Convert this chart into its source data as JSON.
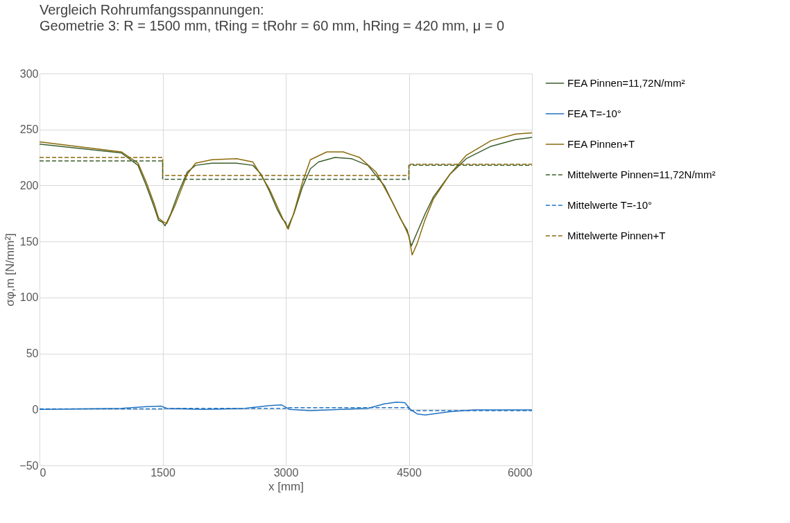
{
  "chart_data": {
    "type": "line",
    "title": "Vergleich Rohrumfangsspannungen:",
    "subtitle": "Geometrie 3: R = 1500 mm, tRing = tRohr = 60 mm, hRing = 420 mm, μ = 0",
    "xlabel": "x [mm]",
    "ylabel": "σφ,m [N/mm²]",
    "xlim": [
      0,
      6000
    ],
    "ylim": [
      -50,
      300
    ],
    "xticks": [
      0,
      1500,
      3000,
      4500,
      6000
    ],
    "yticks": [
      -50,
      0,
      50,
      100,
      150,
      200,
      250,
      300
    ],
    "grid": true,
    "legend": "right",
    "marker": "none",
    "series": [
      {
        "name": "FEA Pinnen=11,72N/mm²",
        "color": "#3b5e2b",
        "line_style": "solid",
        "x": [
          0,
          1000,
          1200,
          1300,
          1400,
          1450,
          1500,
          1530,
          1600,
          1700,
          1800,
          1900,
          2100,
          2400,
          2600,
          2700,
          2800,
          2900,
          2960,
          3000,
          3020,
          3100,
          3200,
          3300,
          3400,
          3600,
          3800,
          4000,
          4200,
          4300,
          4400,
          4480,
          4530,
          4600,
          4700,
          4800,
          5000,
          5200,
          5500,
          5800,
          6000
        ],
        "values": [
          237,
          229,
          218,
          200,
          180,
          169,
          167,
          164,
          175,
          195,
          212,
          218,
          220,
          220,
          218,
          210,
          195,
          178,
          170,
          167,
          162,
          175,
          198,
          215,
          221,
          225,
          224,
          218,
          200,
          185,
          170,
          160,
          146,
          158,
          175,
          190,
          210,
          224,
          235,
          241,
          243
        ]
      },
      {
        "name": "FEA T=-10°",
        "color": "#1f73c4",
        "line_style": "solid",
        "x": [
          0,
          1000,
          1300,
          1480,
          1550,
          2000,
          2500,
          2800,
          2950,
          3050,
          3300,
          4000,
          4200,
          4350,
          4450,
          4520,
          4600,
          4700,
          5000,
          5300,
          6000
        ],
        "values": [
          0,
          1,
          2.5,
          3,
          1,
          0,
          1,
          3.5,
          4,
          0,
          -1,
          1,
          5,
          6.5,
          6,
          0,
          -4,
          -5,
          -2,
          -0.5,
          -0.5
        ]
      },
      {
        "name": "FEA Pinnen+T",
        "color": "#8b6a0a",
        "line_style": "solid",
        "x": [
          0,
          1000,
          1200,
          1300,
          1400,
          1450,
          1500,
          1550,
          1650,
          1800,
          1900,
          2100,
          2400,
          2600,
          2800,
          2960,
          3030,
          3100,
          3200,
          3300,
          3500,
          3700,
          3900,
          4100,
          4300,
          4450,
          4500,
          4540,
          4600,
          4700,
          4800,
          5000,
          5200,
          5500,
          5800,
          6000
        ],
        "values": [
          239,
          230,
          220,
          203,
          183,
          171,
          168,
          166,
          182,
          210,
          220,
          223,
          224,
          221,
          197,
          171,
          161,
          176,
          202,
          223,
          230,
          230,
          225,
          212,
          185,
          163,
          155,
          138,
          148,
          170,
          188,
          210,
          227,
          240,
          246,
          247
        ]
      },
      {
        "name": "Mittelwerte Pinnen=11,72N/mm²",
        "color": "#3b5e2b",
        "line_style": "dashed",
        "x": [
          0,
          1500,
          1500,
          4500,
          4500,
          6000
        ],
        "values": [
          222,
          222,
          205.5,
          205.5,
          218,
          218
        ]
      },
      {
        "name": "Mittelwerte  T=-10°",
        "color": "#1f73c4",
        "line_style": "dashed",
        "x": [
          0,
          1500,
          1500,
          3000,
          3000,
          4500,
          4500,
          6000
        ],
        "values": [
          0.5,
          0.5,
          1,
          1,
          1.5,
          1.5,
          -1,
          -1
        ]
      },
      {
        "name": "Mittelwerte  Pinnen+T",
        "color": "#8b6a0a",
        "line_style": "dashed",
        "x": [
          0,
          1500,
          1500,
          4500,
          4500,
          6000
        ],
        "values": [
          225,
          225,
          209,
          209,
          219,
          219
        ]
      }
    ]
  }
}
